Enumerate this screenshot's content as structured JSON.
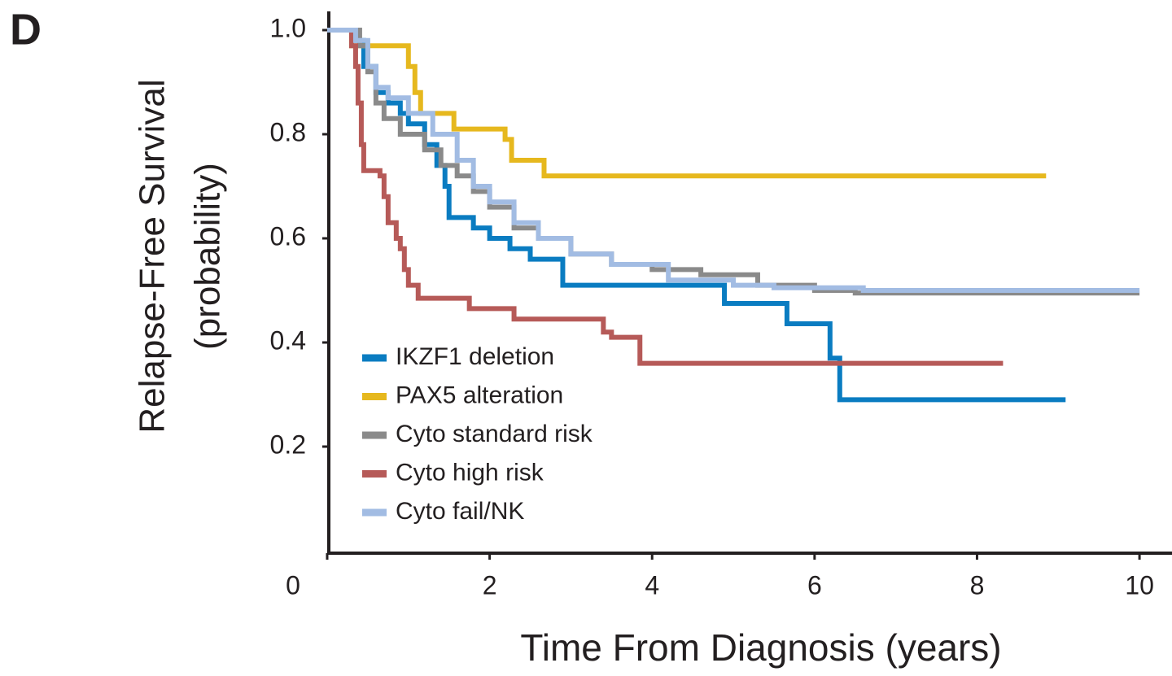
{
  "chart_data": {
    "type": "step",
    "panel_label": "D",
    "ylabel": [
      "Relapse-Free Survival",
      "(probability)"
    ],
    "xlabel": "Time From Diagnosis (years)",
    "xlim": [
      0,
      10.4
    ],
    "ylim": [
      0,
      1
    ],
    "xticks": [
      0,
      2,
      4,
      6,
      8,
      10
    ],
    "yticks": [
      {
        "value": 1,
        "label": "1.0"
      },
      0.8,
      0.6,
      0.4,
      0.2
    ],
    "legend": "lower-left",
    "series": [
      {
        "name": "IKZF1 deletion",
        "color": "#0a7cc1",
        "x": [
          0,
          0.35,
          0.45,
          0.6,
          0.75,
          0.9,
          1.0,
          1.2,
          1.35,
          1.45,
          1.5,
          1.8,
          2.0,
          2.25,
          2.5,
          2.9,
          4.89,
          5.66,
          6.19,
          6.31,
          9.09
        ],
        "values": [
          1.0,
          0.98,
          0.93,
          0.88,
          0.86,
          0.84,
          0.82,
          0.78,
          0.74,
          0.7,
          0.64,
          0.62,
          0.6,
          0.58,
          0.56,
          0.51,
          0.475,
          0.436,
          0.37,
          0.29,
          0.29
        ]
      },
      {
        "name": "PAX5 alteration",
        "color": "#e6b81e",
        "x": [
          0,
          0.3,
          1.0,
          1.08,
          1.15,
          1.56,
          2.19,
          2.27,
          2.67,
          8.85
        ],
        "values": [
          1.0,
          0.97,
          0.93,
          0.88,
          0.84,
          0.81,
          0.79,
          0.75,
          0.72,
          0.72
        ]
      },
      {
        "name": "Cyto standard risk",
        "color": "#8a8a8a",
        "x": [
          0,
          0.4,
          0.5,
          0.6,
          0.7,
          0.9,
          1.2,
          1.4,
          1.6,
          1.8,
          2.0,
          2.3,
          2.6,
          3.0,
          3.5,
          4.0,
          4.6,
          5.3,
          6.0,
          6.5,
          10.0
        ],
        "values": [
          1.0,
          0.97,
          0.92,
          0.86,
          0.83,
          0.8,
          0.77,
          0.74,
          0.72,
          0.69,
          0.66,
          0.62,
          0.6,
          0.57,
          0.55,
          0.54,
          0.53,
          0.51,
          0.5,
          0.495,
          0.495
        ]
      },
      {
        "name": "Cyto high risk",
        "color": "#b65a58",
        "x": [
          0,
          0.3,
          0.35,
          0.38,
          0.42,
          0.45,
          0.65,
          0.7,
          0.75,
          0.85,
          0.9,
          0.95,
          1.0,
          1.12,
          1.75,
          2.3,
          3.4,
          3.5,
          3.85,
          8.32
        ],
        "values": [
          1.0,
          0.97,
          0.93,
          0.86,
          0.78,
          0.73,
          0.72,
          0.68,
          0.63,
          0.6,
          0.58,
          0.54,
          0.51,
          0.485,
          0.465,
          0.445,
          0.42,
          0.41,
          0.36,
          0.36
        ]
      },
      {
        "name": "Cyto fail/NK",
        "color": "#a2bce3",
        "x": [
          0,
          0.35,
          0.5,
          0.6,
          0.75,
          1.0,
          1.3,
          1.6,
          1.8,
          2.0,
          2.3,
          2.6,
          3.0,
          3.5,
          4.2,
          5.0,
          5.5,
          6.6,
          10.0
        ],
        "values": [
          1.0,
          0.98,
          0.93,
          0.89,
          0.87,
          0.84,
          0.8,
          0.75,
          0.7,
          0.67,
          0.63,
          0.6,
          0.57,
          0.55,
          0.52,
          0.51,
          0.505,
          0.5,
          0.5
        ]
      }
    ]
  }
}
